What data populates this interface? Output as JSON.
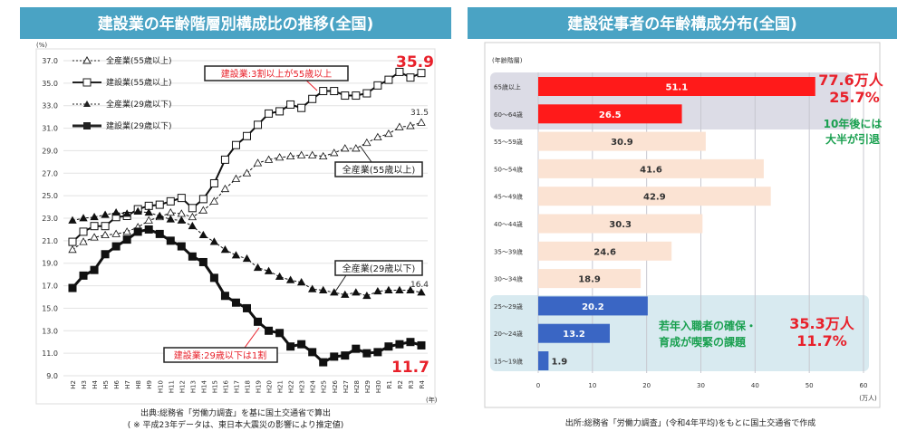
{
  "chart_data": [
    {
      "type": "line",
      "title": "建設業の年齢階層別構成比の推移(全国)",
      "ylabel": "(%)",
      "xlabel": "(年)",
      "ylim": [
        9.0,
        37.0
      ],
      "yticks": [
        "37.0",
        "35.0",
        "33.0",
        "31.0",
        "29.0",
        "27.0",
        "25.0",
        "23.0",
        "21.0",
        "19.0",
        "17.0",
        "15.0",
        "13.0",
        "11.0",
        "9.0"
      ],
      "grid": true,
      "legend_position": "top-left",
      "x": [
        "H2",
        "H3",
        "H4",
        "H5",
        "H6",
        "H7",
        "H8",
        "H9",
        "H10",
        "H11",
        "H12",
        "H13",
        "H14",
        "H15",
        "H16",
        "H17",
        "H18",
        "H19",
        "H20",
        "H21",
        "H22",
        "H23",
        "H24",
        "H25",
        "H26",
        "H27",
        "H28",
        "H29",
        "H30",
        "R1",
        "R2",
        "R3",
        "R4"
      ],
      "series": [
        {
          "name": "全産業(55歳以上)",
          "style": "dashed-open-triangle",
          "values": [
            20.2,
            20.9,
            21.3,
            21.5,
            21.6,
            21.8,
            22.2,
            22.8,
            23.1,
            23.5,
            23.4,
            23.1,
            23.7,
            24.5,
            25.6,
            26.5,
            27.0,
            27.9,
            28.2,
            28.4,
            28.5,
            28.6,
            28.6,
            28.5,
            28.8,
            29.2,
            29.2,
            29.7,
            30.2,
            30.5,
            31.1,
            31.2,
            31.5
          ]
        },
        {
          "name": "建設業(55歳以上)",
          "style": "solid-open-square",
          "values": [
            20.9,
            21.8,
            22.3,
            22.3,
            23.1,
            23.2,
            23.8,
            24.1,
            24.2,
            24.5,
            24.8,
            23.9,
            24.7,
            26.1,
            28.2,
            29.5,
            30.3,
            31.3,
            32.3,
            32.5,
            33.1,
            32.8,
            33.6,
            34.3,
            34.3,
            33.9,
            33.9,
            34.1,
            34.8,
            35.3,
            36.0,
            35.5,
            35.9
          ]
        },
        {
          "name": "全産業(29歳以下)",
          "style": "dashed-filled-triangle",
          "values": [
            22.8,
            23.0,
            23.1,
            23.3,
            23.5,
            23.4,
            23.6,
            23.5,
            23.2,
            22.9,
            22.8,
            22.3,
            21.5,
            20.9,
            20.2,
            19.7,
            19.4,
            18.6,
            18.3,
            17.8,
            17.5,
            17.3,
            16.7,
            16.6,
            16.4,
            16.2,
            16.4,
            16.1,
            16.5,
            16.6,
            16.6,
            16.6,
            16.4
          ]
        },
        {
          "name": "建設業(29歳以下)",
          "style": "solid-filled-square",
          "values": [
            16.8,
            17.9,
            18.4,
            19.8,
            20.5,
            21.1,
            21.8,
            22.0,
            21.6,
            21.0,
            20.5,
            19.6,
            19.1,
            17.7,
            16.1,
            15.5,
            15.0,
            13.8,
            13.0,
            12.8,
            11.6,
            11.8,
            11.1,
            10.2,
            10.7,
            10.8,
            11.4,
            11.0,
            11.1,
            11.6,
            11.8,
            12.0,
            11.7
          ]
        }
      ],
      "annotations": {
        "c55_callout": "建設業:3割以上が55歳以上",
        "a55_callout": "全産業(55歳以上)",
        "a29_callout": "全産業(29歳以下)",
        "c29_callout": "建設業:29歳以下は1割",
        "c55_last": "35.9",
        "a55_last": "31.5",
        "a29_last": "16.4",
        "c29_last": "11.7"
      },
      "source": "出典:総務省「労働力調査」を基に国土交通省で算出",
      "note": "( ※ 平成23年データは、東日本大震災の影響により推定値)"
    },
    {
      "type": "bar",
      "orientation": "horizontal",
      "title": "建設従事者の年齢構成分布(全国)",
      "ylabel": "(年齢階層)",
      "xlabel": "(万人)",
      "xlim": [
        0,
        60
      ],
      "xticks": [
        "0",
        "10",
        "20",
        "30",
        "40",
        "50",
        "60"
      ],
      "categories": [
        "65歳以上",
        "60〜64歳",
        "55〜59歳",
        "50〜54歳",
        "45〜49歳",
        "40〜44歳",
        "35〜39歳",
        "30〜34歳",
        "25〜29歳",
        "20〜24歳",
        "15〜19歳"
      ],
      "values": [
        51.1,
        26.5,
        30.9,
        41.6,
        42.9,
        30.3,
        24.6,
        18.9,
        20.2,
        13.2,
        1.9
      ],
      "value_labels": [
        "51.1",
        "26.5",
        "30.9",
        "41.6",
        "42.9",
        "30.3",
        "24.6",
        "18.9",
        "20.2",
        "13.2",
        "1.9"
      ],
      "groups": [
        "old",
        "old",
        "mid",
        "mid",
        "mid",
        "mid",
        "mid",
        "mid",
        "young",
        "young",
        "young"
      ],
      "colors": {
        "old": "#ff1a1a",
        "mid": "#fbe3d3",
        "young": "#3a66c4"
      },
      "annotations": {
        "old_total": "77.6万人",
        "old_pct": "25.7%",
        "old_note_1": "10年後には",
        "old_note_2": "大半が引退",
        "young_note_1": "若年入職者の確保・",
        "young_note_2": "育成が喫緊の課題",
        "young_total": "35.3万人",
        "young_pct": "11.7%"
      },
      "source": "出所:総務省「労働力調査」(令和4年平均)をもとに国土交通省で作成"
    }
  ],
  "colors": {
    "banner": "#4aa3c4",
    "red": "#e8202a",
    "green": "#1aa050"
  }
}
